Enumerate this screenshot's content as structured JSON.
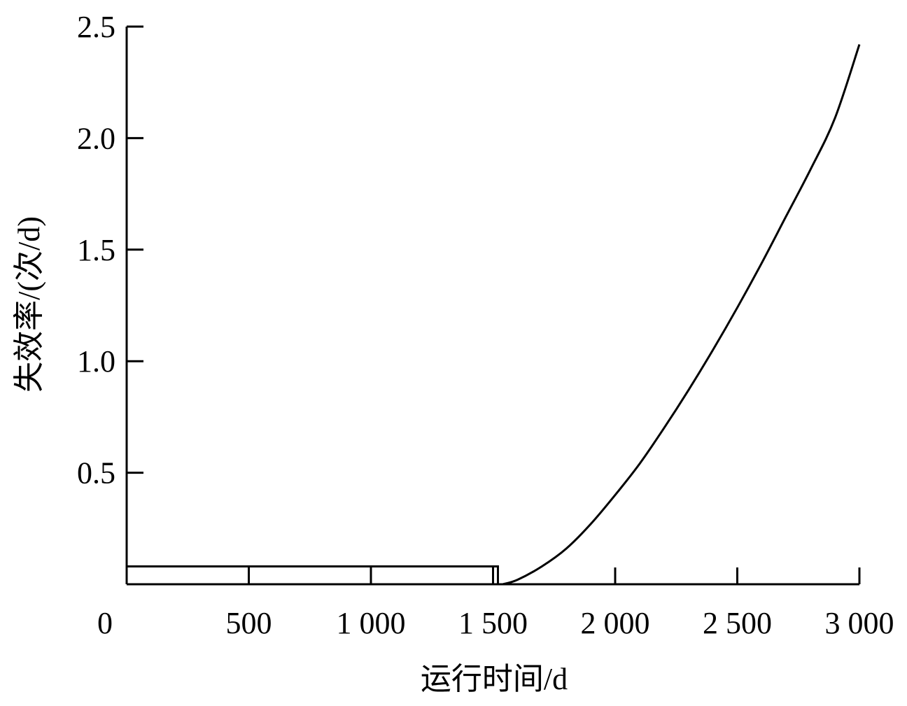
{
  "chart_data": {
    "type": "line",
    "title": "",
    "xlabel": "运行时间/d",
    "ylabel": "失效率/(次/d)",
    "xlim": [
      0,
      3000
    ],
    "ylim": [
      0,
      2.5
    ],
    "x_ticks": [
      0,
      500,
      1000,
      1500,
      2000,
      2500,
      3000
    ],
    "x_tick_labels": [
      "0",
      "500",
      "1 000",
      "1 500",
      "2 000",
      "2 500",
      "3 000"
    ],
    "y_ticks": [
      0.5,
      1.0,
      1.5,
      2.0,
      2.5
    ],
    "y_tick_labels": [
      "0.5",
      "1.0",
      "1.5",
      "2.0",
      "2.5"
    ],
    "grid": false,
    "legend": "none",
    "color": "#000000",
    "series": [
      {
        "type": "step",
        "x": [
          0,
          1520
        ],
        "y": [
          0.08,
          0.08
        ]
      },
      {
        "type": "curve",
        "x": [
          1540,
          1600,
          1700,
          1800,
          1900,
          2000,
          2100,
          2200,
          2300,
          2400,
          2500,
          2600,
          2700,
          2800,
          2900,
          3000
        ],
        "y": [
          0.0,
          0.02,
          0.08,
          0.16,
          0.27,
          0.4,
          0.54,
          0.7,
          0.87,
          1.05,
          1.24,
          1.44,
          1.65,
          1.86,
          2.09,
          2.42
        ]
      }
    ]
  }
}
